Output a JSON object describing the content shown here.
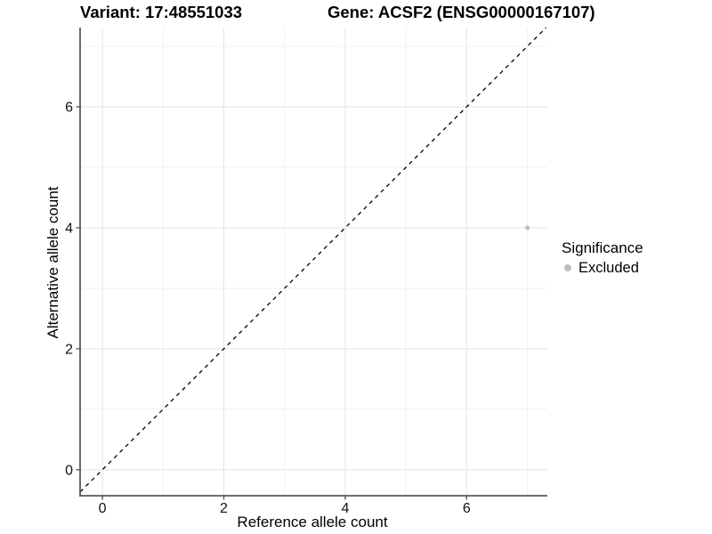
{
  "chart_data": {
    "type": "scatter",
    "title_left": "Variant: 17:48551033",
    "title_right": "Gene: ACSF2 (ENSG00000167107)",
    "xlabel": "Reference allele count",
    "ylabel": "Alternative allele count",
    "xlim": [
      -0.368,
      7.33
    ],
    "ylim": [
      -0.43,
      7.31
    ],
    "x_ticks": [
      0,
      2,
      4,
      6
    ],
    "y_ticks": [
      0,
      2,
      4,
      6
    ],
    "x_minor_ticks": [
      1,
      3,
      5,
      7
    ],
    "y_minor_ticks": [
      1,
      3,
      5,
      7
    ],
    "grid": true,
    "identity_line": {
      "slope": 1,
      "intercept": 0,
      "style": "dashed",
      "color": "#000000"
    },
    "series": [
      {
        "name": "Excluded",
        "color": "#bebebe",
        "points": [
          {
            "x": 7,
            "y": 4
          }
        ]
      }
    ],
    "legend": {
      "title": "Significance",
      "position": "right",
      "items": [
        {
          "label": "Excluded",
          "color": "#bebebe"
        }
      ]
    },
    "colors": {
      "background": "#ffffff",
      "grid_major": "#e8e8e8",
      "grid_minor": "#f2f2f2",
      "axis_line": "#595959",
      "tick_label": "#111111"
    }
  }
}
